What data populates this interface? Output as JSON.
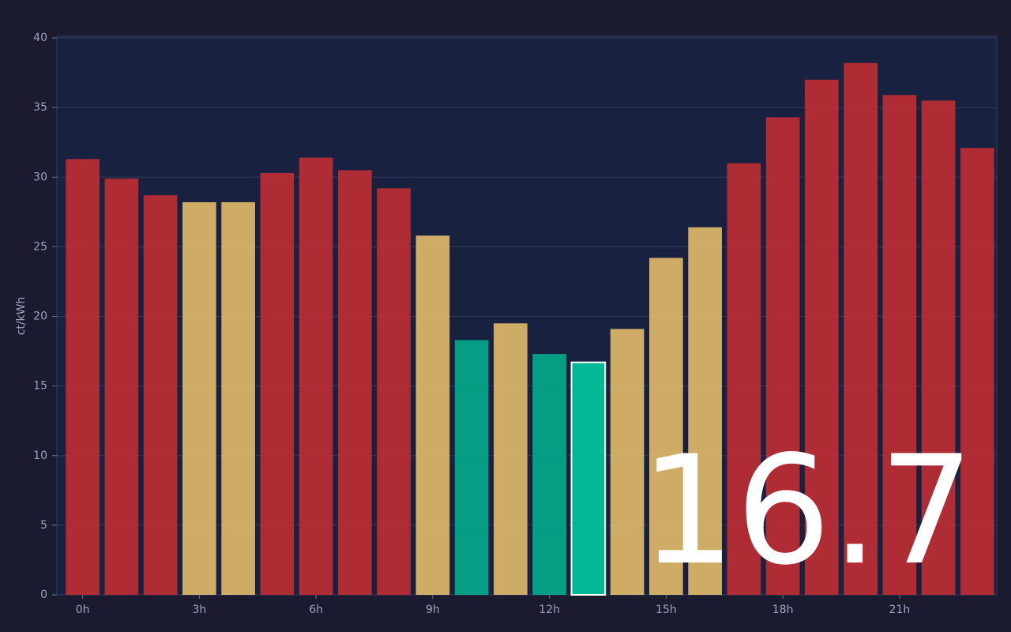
{
  "chart_data": {
    "type": "bar",
    "y_label": "ct/kWh",
    "categories": [
      "0h",
      null,
      null,
      "3h",
      null,
      null,
      "6h",
      null,
      null,
      "9h",
      null,
      null,
      "12h",
      null,
      null,
      "15h",
      null,
      null,
      "18h",
      null,
      null,
      "21h",
      null,
      null
    ],
    "values": [
      31.3,
      29.9,
      28.7,
      28.2,
      28.2,
      30.3,
      31.4,
      30.5,
      29.2,
      25.8,
      18.3,
      19.5,
      17.3,
      16.7,
      19.1,
      24.2,
      26.4,
      31.0,
      34.3,
      37.0,
      38.2,
      35.9,
      35.5,
      32.1
    ],
    "colors": [
      "#b82d34",
      "#b82d34",
      "#b82d34",
      "#d9b468",
      "#d9b468",
      "#b82d34",
      "#b82d34",
      "#b82d34",
      "#b82d34",
      "#d9b468",
      "#04a589",
      "#d9b468",
      "#04a589",
      "#00b894",
      "#d9b468",
      "#d9b468",
      "#d9b468",
      "#b82d34",
      "#b82d34",
      "#b82d34",
      "#b82d34",
      "#b82d34",
      "#b82d34",
      "#b82d34"
    ],
    "highlight": 13,
    "ylim": [
      0,
      40
    ],
    "yticks": [
      0,
      5,
      10,
      15,
      20,
      25,
      30,
      35,
      40
    ],
    "grid": true
  }
}
